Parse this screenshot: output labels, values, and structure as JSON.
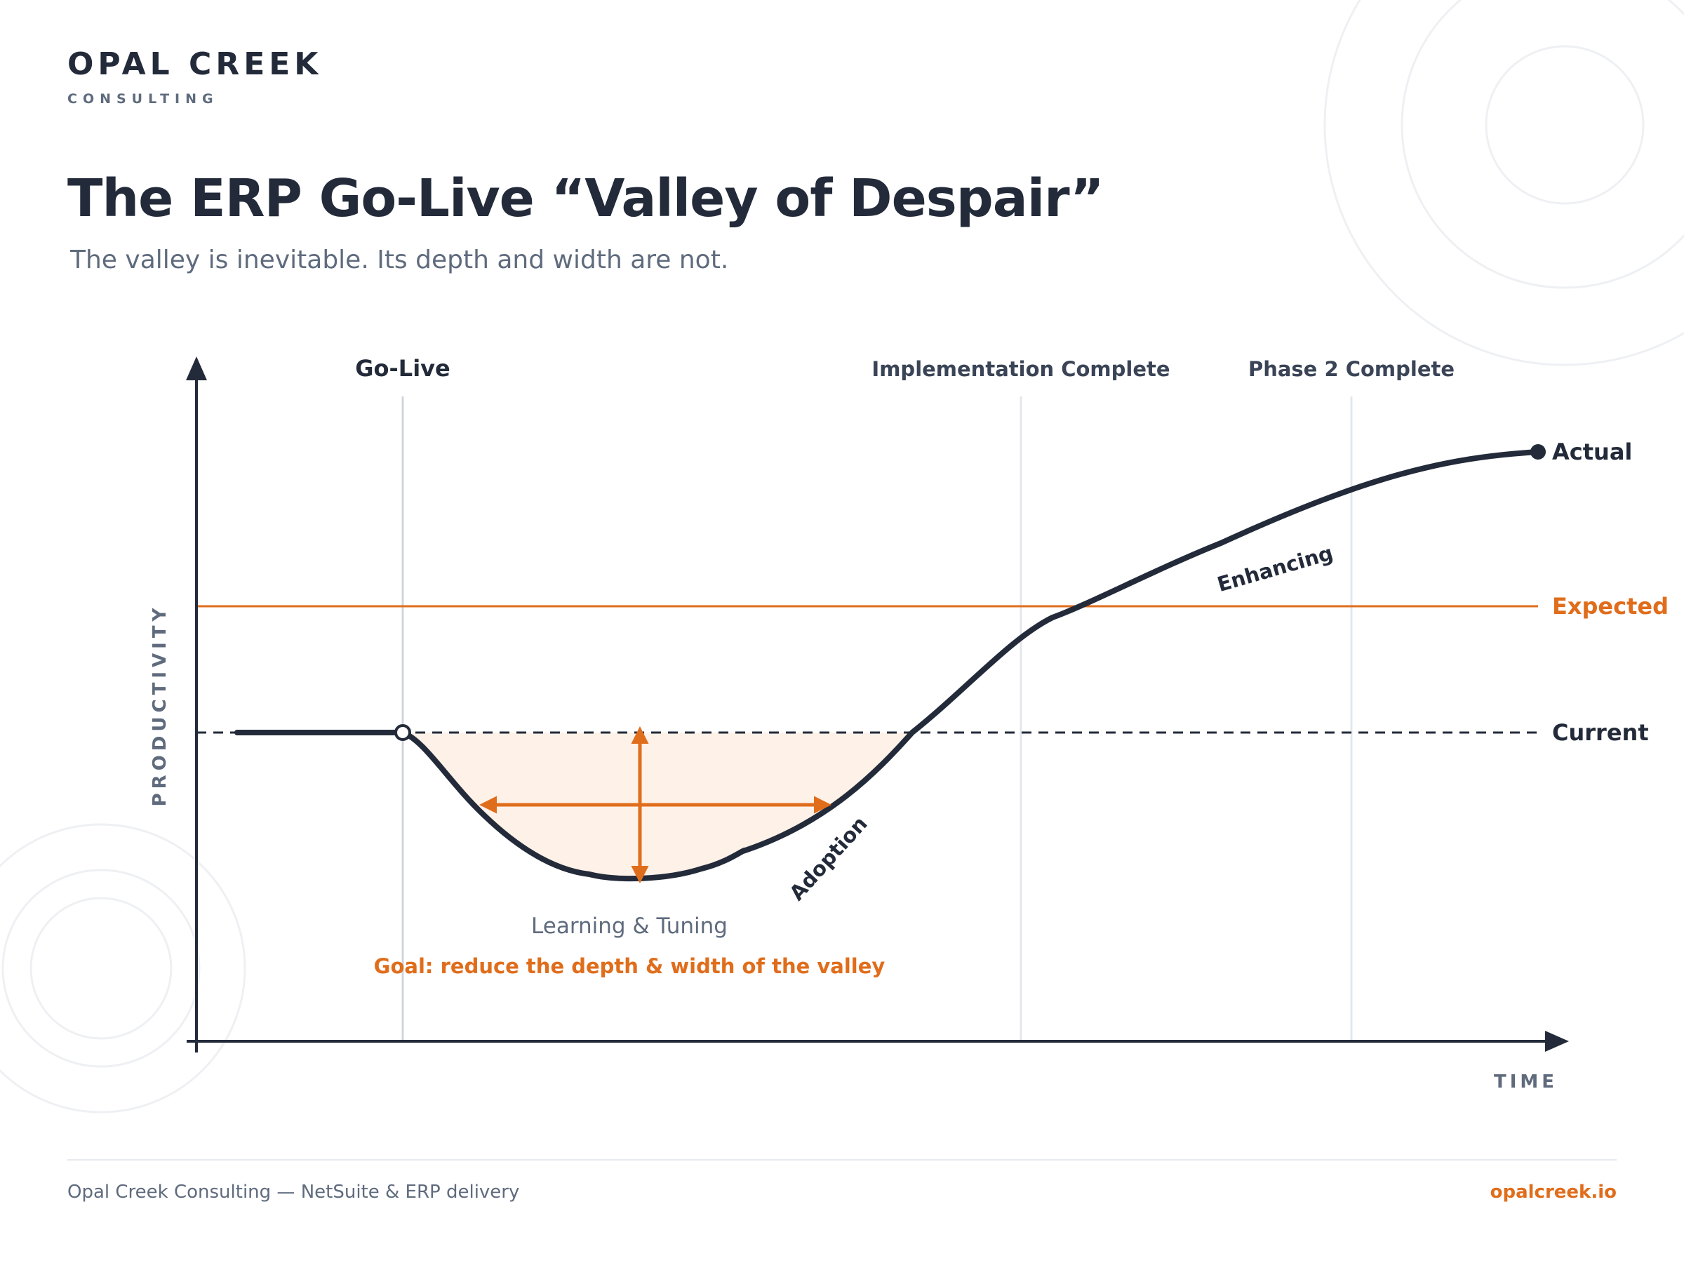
{
  "brand": {
    "name": "OPAL CREEK",
    "sub": "CONSULTING"
  },
  "title": "The ERP Go-Live “Valley of Despair”",
  "subtitle": "The valley is inevitable. Its depth and width are not.",
  "diagram": {
    "y_axis_label": "PRODUCTIVITY",
    "x_axis_label": "TIME",
    "milestones": [
      "Go-Live",
      "Implementation Complete",
      "Phase 2 Complete"
    ],
    "lines": {
      "expected": "Expected",
      "current": "Current",
      "actual": "Actual"
    },
    "curve_labels": {
      "adoption": "Adoption",
      "enhancing": "Enhancing"
    },
    "valley_label": "Learning & Tuning",
    "goal": "Goal: reduce the depth & width of the valley"
  },
  "footer": {
    "left": "Opal Creek Consulting — NetSuite & ERP delivery",
    "right": "opalcreek.io"
  },
  "colors": {
    "navy": "#232b3a",
    "accent": "#e06d1b",
    "muted": "#5f6b7d",
    "valley_fill": "#fdf1e8",
    "grid": "#cfd5dd"
  }
}
